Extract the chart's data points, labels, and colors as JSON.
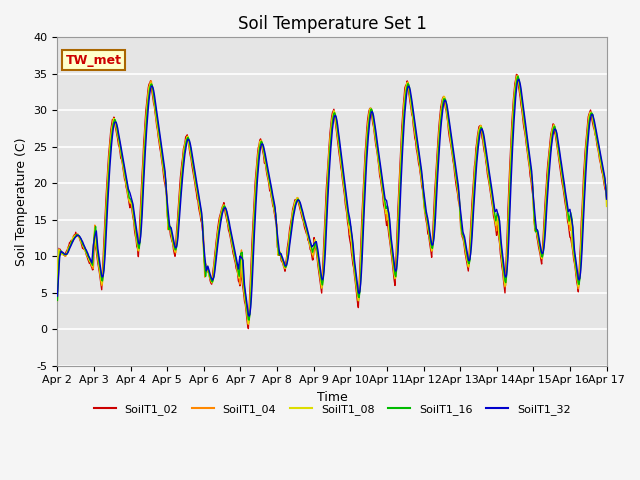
{
  "title": "Soil Temperature Set 1",
  "xlabel": "Time",
  "ylabel": "Soil Temperature (C)",
  "ylim": [
    -5,
    40
  ],
  "annotation": "TW_met",
  "legend_labels": [
    "SoilT1_02",
    "SoilT1_04",
    "SoilT1_08",
    "SoilT1_16",
    "SoilT1_32"
  ],
  "line_colors": [
    "#cc0000",
    "#ff8800",
    "#dddd00",
    "#00bb00",
    "#0000cc"
  ],
  "background_color": "#e5e5e5",
  "grid_color": "#ffffff",
  "title_fontsize": 12,
  "axis_fontsize": 9,
  "tick_fontsize": 8,
  "figsize": [
    6.4,
    4.8
  ],
  "dpi": 100
}
